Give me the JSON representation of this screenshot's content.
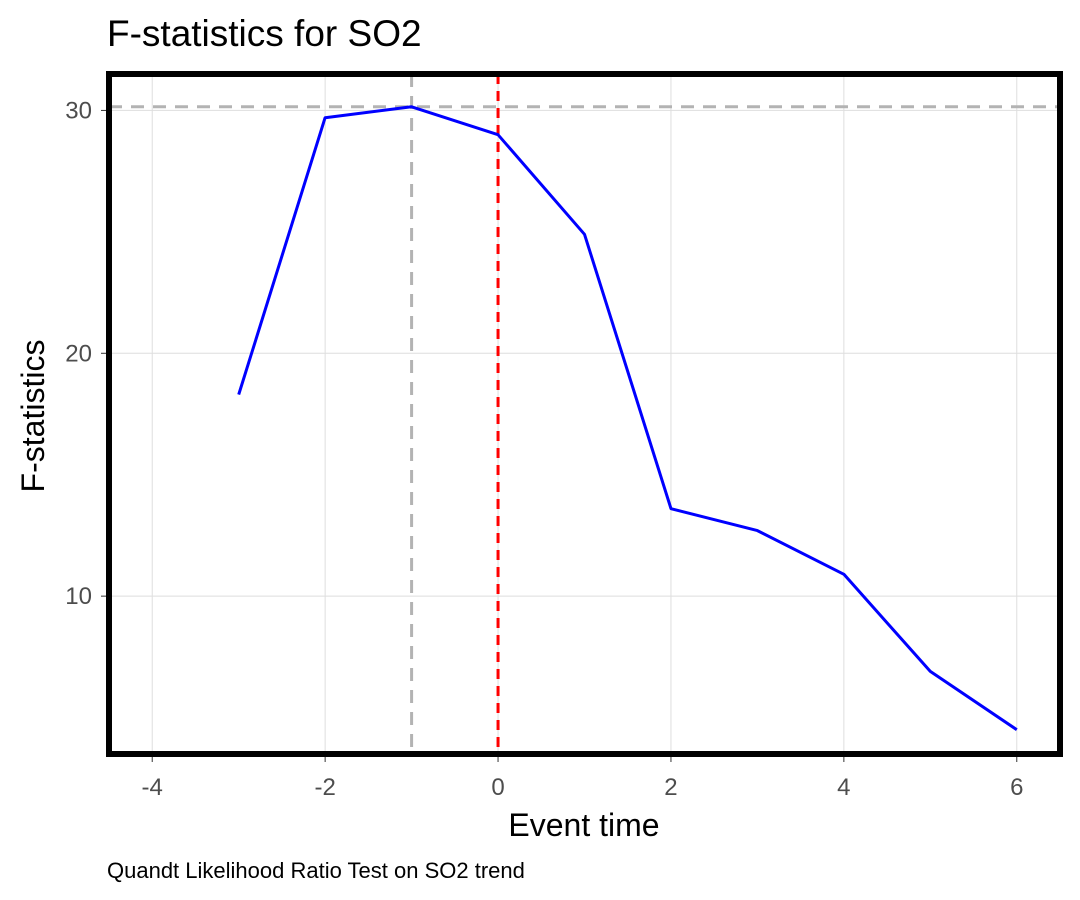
{
  "chart_data": {
    "type": "line",
    "title": "F-statistics for SO2",
    "xlabel": "Event time",
    "ylabel": "F-statistics",
    "caption": "Quandt Likelihood Ratio Test on SO2 trend",
    "x": [
      -3,
      -2,
      -1,
      0,
      1,
      2,
      3,
      4,
      5,
      6
    ],
    "series": [
      {
        "values": [
          18.3,
          29.7,
          30.15,
          29.0,
          24.9,
          13.6,
          12.7,
          10.9,
          6.9,
          4.5
        ],
        "color": "#0000ff"
      }
    ],
    "xlim": [
      -4.5,
      6.5
    ],
    "ylim": [
      3.5,
      31.5
    ],
    "x_ticks": [
      -4,
      -2,
      0,
      2,
      4,
      6
    ],
    "x_tick_labels": [
      "-4",
      "-2",
      "0",
      "2",
      "4",
      "6"
    ],
    "y_ticks": [
      10,
      20,
      30
    ],
    "y_tick_labels": [
      "10",
      "20",
      "30"
    ],
    "reference_lines": {
      "horizontal": {
        "y": 30.15,
        "color": "#b3b3b3",
        "style": "dashed"
      },
      "vertical_peak": {
        "x": -1,
        "color": "#b3b3b3",
        "style": "dashed"
      },
      "vertical_event": {
        "x": 0,
        "color": "#ff0000",
        "style": "dashed"
      }
    },
    "grid": true,
    "legend": "none"
  }
}
